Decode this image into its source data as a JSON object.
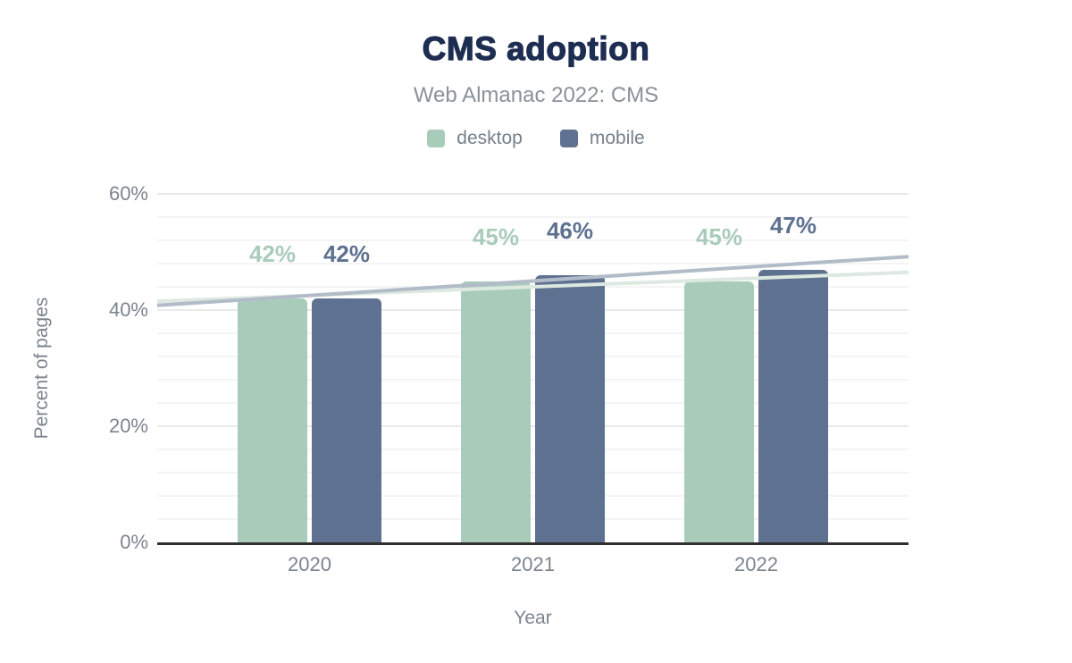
{
  "chart_data": {
    "type": "bar",
    "title": "CMS adoption",
    "subtitle": "Web Almanac 2022: CMS",
    "xlabel": "Year",
    "ylabel": "Percent of pages",
    "categories": [
      "2020",
      "2021",
      "2022"
    ],
    "series": [
      {
        "name": "desktop",
        "color": "#a9ccba",
        "values": [
          42,
          45,
          45
        ],
        "labels": [
          "42%",
          "45%",
          "45%"
        ]
      },
      {
        "name": "mobile",
        "color": "#5e7190",
        "values": [
          42,
          46,
          47
        ],
        "labels": [
          "42%",
          "46%",
          "47%"
        ]
      }
    ],
    "trendlines": [
      {
        "series": "desktop",
        "color": "#dde8e1",
        "start_value": 41.5,
        "end_value": 46.5
      },
      {
        "series": "mobile",
        "color": "#b2bcc9",
        "start_value": 40.8,
        "end_value": 49.2
      }
    ],
    "y_axis": {
      "tick_labels": [
        "0%",
        "20%",
        "40%",
        "60%"
      ],
      "tick_values": [
        0,
        20,
        40,
        60
      ],
      "min": 0,
      "max": 60,
      "minor_step": 4
    },
    "legend": {
      "position": "top",
      "items": [
        "desktop",
        "mobile"
      ]
    },
    "grid": "on",
    "ylim": [
      0,
      60
    ]
  },
  "colors": {
    "title": "#1e2d52",
    "subtitle": "#8b9199",
    "legend_text": "#76808a",
    "axis_text": "#7c848e",
    "axis_line": "#2f2f2f",
    "grid_major": "#e9e9e9",
    "grid_minor": "#f4f4f4",
    "background": "#ffffff"
  }
}
